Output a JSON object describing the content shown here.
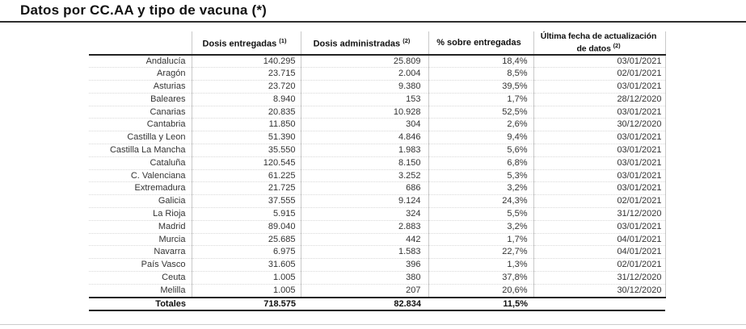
{
  "title": "Datos por CC.AA y tipo de vacuna (*)",
  "colors": {
    "rule_dark": "#2e2e2e",
    "rule_light": "#cccccc",
    "separator_gray": "#c9c9c9",
    "text": "#333333"
  },
  "table": {
    "columns": [
      {
        "label": "",
        "label2": "",
        "sup": ""
      },
      {
        "label": "Dosis entregadas",
        "label2": "",
        "sup": "(1)"
      },
      {
        "label": "Dosis administradas",
        "label2": "",
        "sup": "(2)"
      },
      {
        "label": "% sobre entregadas",
        "label2": "",
        "sup": ""
      },
      {
        "label": "Última fecha de actualización",
        "label2": "de datos",
        "sup": "(2)"
      }
    ],
    "rows": [
      {
        "region": "Andalucía",
        "entregadas": "140.295",
        "administradas": "25.809",
        "pct": "18,4%",
        "fecha": "03/01/2021"
      },
      {
        "region": "Aragón",
        "entregadas": "23.715",
        "administradas": "2.004",
        "pct": "8,5%",
        "fecha": "02/01/2021"
      },
      {
        "region": "Asturias",
        "entregadas": "23.720",
        "administradas": "9.380",
        "pct": "39,5%",
        "fecha": "03/01/2021"
      },
      {
        "region": "Baleares",
        "entregadas": "8.940",
        "administradas": "153",
        "pct": "1,7%",
        "fecha": "28/12/2020"
      },
      {
        "region": "Canarias",
        "entregadas": "20.835",
        "administradas": "10.928",
        "pct": "52,5%",
        "fecha": "03/01/2021"
      },
      {
        "region": "Cantabria",
        "entregadas": "11.850",
        "administradas": "304",
        "pct": "2,6%",
        "fecha": "30/12/2020"
      },
      {
        "region": "Castilla y Leon",
        "entregadas": "51.390",
        "administradas": "4.846",
        "pct": "9,4%",
        "fecha": "03/01/2021"
      },
      {
        "region": "Castilla La Mancha",
        "entregadas": "35.550",
        "administradas": "1.983",
        "pct": "5,6%",
        "fecha": "03/01/2021"
      },
      {
        "region": "Cataluña",
        "entregadas": "120.545",
        "administradas": "8.150",
        "pct": "6,8%",
        "fecha": "03/01/2021"
      },
      {
        "region": "C. Valenciana",
        "entregadas": "61.225",
        "administradas": "3.252",
        "pct": "5,3%",
        "fecha": "03/01/2021"
      },
      {
        "region": "Extremadura",
        "entregadas": "21.725",
        "administradas": "686",
        "pct": "3,2%",
        "fecha": "03/01/2021"
      },
      {
        "region": "Galicia",
        "entregadas": "37.555",
        "administradas": "9.124",
        "pct": "24,3%",
        "fecha": "02/01/2021"
      },
      {
        "region": "La Rioja",
        "entregadas": "5.915",
        "administradas": "324",
        "pct": "5,5%",
        "fecha": "31/12/2020"
      },
      {
        "region": "Madrid",
        "entregadas": "89.040",
        "administradas": "2.883",
        "pct": "3,2%",
        "fecha": "03/01/2021"
      },
      {
        "region": "Murcia",
        "entregadas": "25.685",
        "administradas": "442",
        "pct": "1,7%",
        "fecha": "04/01/2021"
      },
      {
        "region": "Navarra",
        "entregadas": "6.975",
        "administradas": "1.583",
        "pct": "22,7%",
        "fecha": "04/01/2021"
      },
      {
        "region": "País Vasco",
        "entregadas": "31.605",
        "administradas": "396",
        "pct": "1,3%",
        "fecha": "02/01/2021"
      },
      {
        "region": "Ceuta",
        "entregadas": "1.005",
        "administradas": "380",
        "pct": "37,8%",
        "fecha": "31/12/2020"
      },
      {
        "region": "Melilla",
        "entregadas": "1.005",
        "administradas": "207",
        "pct": "20,6%",
        "fecha": "30/12/2020"
      }
    ],
    "totals": {
      "label": "Totales",
      "entregadas": "718.575",
      "administradas": "82.834",
      "pct": "11,5%",
      "fecha": ""
    }
  }
}
